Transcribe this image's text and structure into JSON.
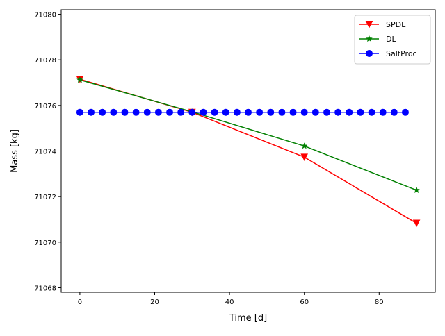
{
  "chart_data": {
    "type": "line",
    "title": "",
    "xlabel": "Time [d]",
    "ylabel": "Mass [kg]",
    "xlim": [
      -5,
      95
    ],
    "ylim": [
      71067.8,
      71080.2
    ],
    "xticks": [
      0,
      20,
      40,
      60,
      80
    ],
    "yticks": [
      71068,
      71070,
      71072,
      71074,
      71076,
      71078,
      71080
    ],
    "grid": false,
    "legend_position": "upper right",
    "series": [
      {
        "name": "SPDL",
        "color": "#ff0000",
        "marker": "triangle-down",
        "x": [
          0,
          30,
          60,
          90
        ],
        "y": [
          71077.15,
          71075.7,
          71073.73,
          71070.83
        ]
      },
      {
        "name": "DL",
        "color": "#008000",
        "marker": "star",
        "x": [
          0,
          30,
          60,
          90
        ],
        "y": [
          71077.12,
          71075.72,
          71074.22,
          71072.28
        ]
      },
      {
        "name": "SaltProc",
        "color": "#0000ff",
        "marker": "circle",
        "x": [
          0,
          3,
          6,
          9,
          12,
          15,
          18,
          21,
          24,
          27,
          30,
          33,
          36,
          39,
          42,
          45,
          48,
          51,
          54,
          57,
          60,
          63,
          66,
          69,
          72,
          75,
          78,
          81,
          84,
          87
        ],
        "y": [
          71075.7,
          71075.7,
          71075.7,
          71075.7,
          71075.7,
          71075.7,
          71075.7,
          71075.7,
          71075.7,
          71075.7,
          71075.7,
          71075.7,
          71075.7,
          71075.7,
          71075.7,
          71075.7,
          71075.7,
          71075.7,
          71075.7,
          71075.7,
          71075.7,
          71075.7,
          71075.7,
          71075.7,
          71075.7,
          71075.7,
          71075.7,
          71075.7,
          71075.7,
          71075.7
        ]
      }
    ]
  }
}
